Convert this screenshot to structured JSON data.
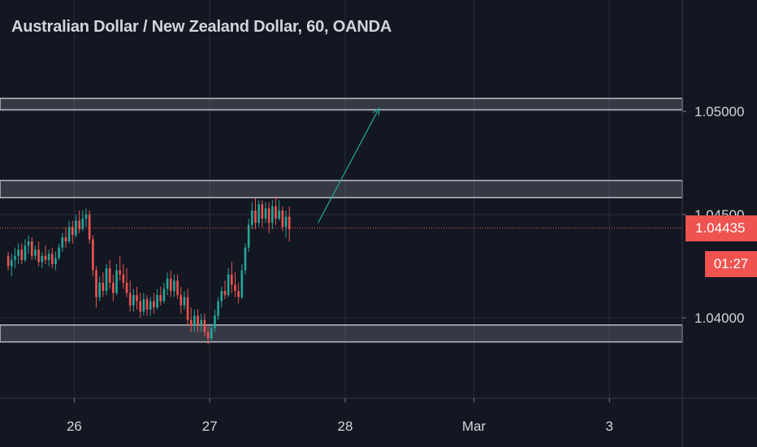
{
  "title": "Australian Dollar / New Zealand Dollar, 60, OANDA",
  "current_price": "1.04435",
  "countdown": "01:27",
  "colors": {
    "background": "#131722",
    "up": "#26a69a",
    "down": "#ef5350",
    "text": "#d1d4dc",
    "grid": "#2a2e39",
    "zone": "#b2b5be"
  },
  "chart_data": {
    "type": "candlestick",
    "symbol": "AUDNZD",
    "interval": "60",
    "source": "OANDA",
    "y_ticks": [
      "1.05000",
      "1.04500",
      "1.04000"
    ],
    "y_tick_values": [
      1.05,
      1.045,
      1.04
    ],
    "x_ticks": [
      "26",
      "27",
      "28",
      "Mar",
      "3"
    ],
    "x_tick_hours": [
      20,
      60,
      100,
      138,
      178
    ],
    "ylim": [
      1.0361,
      1.0554
    ],
    "xlim": [
      -10,
      201
    ],
    "last_price": 1.04435,
    "zones": [
      {
        "low": 1.05008,
        "high": 1.05063
      },
      {
        "low": 1.04582,
        "high": 1.04665
      },
      {
        "low": 1.03883,
        "high": 1.03965
      }
    ],
    "arrow": {
      "from": {
        "hour": 92,
        "price": 1.0446
      },
      "to": {
        "hour": 110,
        "price": 1.05015
      }
    },
    "candles": [
      [
        1.043,
        1.0432,
        1.0423,
        1.0425
      ],
      [
        1.0425,
        1.0431,
        1.042,
        1.0428
      ],
      [
        1.0428,
        1.0434,
        1.0424,
        1.043
      ],
      [
        1.043,
        1.0436,
        1.0426,
        1.0433
      ],
      [
        1.0433,
        1.0436,
        1.0426,
        1.0428
      ],
      [
        1.0428,
        1.0438,
        1.0427,
        1.0435
      ],
      [
        1.0435,
        1.044,
        1.0431,
        1.0437
      ],
      [
        1.0437,
        1.0439,
        1.0428,
        1.043
      ],
      [
        1.043,
        1.0435,
        1.0428,
        1.0433
      ],
      [
        1.0433,
        1.0437,
        1.0425,
        1.0427
      ],
      [
        1.0427,
        1.0432,
        1.0424,
        1.043
      ],
      [
        1.043,
        1.0435,
        1.0426,
        1.0428
      ],
      [
        1.0428,
        1.0433,
        1.0425,
        1.0431
      ],
      [
        1.0431,
        1.0434,
        1.0424,
        1.0426
      ],
      [
        1.0426,
        1.0432,
        1.0423,
        1.0429
      ],
      [
        1.0429,
        1.0436,
        1.0428,
        1.0434
      ],
      [
        1.0434,
        1.0441,
        1.0432,
        1.0439
      ],
      [
        1.0439,
        1.0444,
        1.0434,
        1.0437
      ],
      [
        1.0437,
        1.0447,
        1.0436,
        1.0444
      ],
      [
        1.0444,
        1.0447,
        1.0436,
        1.044
      ],
      [
        1.044,
        1.045,
        1.0439,
        1.0447
      ],
      [
        1.0447,
        1.0452,
        1.0441,
        1.0443
      ],
      [
        1.0443,
        1.0452,
        1.0442,
        1.0448
      ],
      [
        1.0448,
        1.0453,
        1.0444,
        1.045
      ],
      [
        1.045,
        1.0452,
        1.0436,
        1.0438
      ],
      [
        1.0438,
        1.044,
        1.042,
        1.0423
      ],
      [
        1.0423,
        1.0425,
        1.0405,
        1.041
      ],
      [
        1.041,
        1.042,
        1.0408,
        1.0417
      ],
      [
        1.0417,
        1.0422,
        1.041,
        1.0413
      ],
      [
        1.0413,
        1.0426,
        1.0411,
        1.0424
      ],
      [
        1.0424,
        1.0428,
        1.0414,
        1.0417
      ],
      [
        1.0417,
        1.0421,
        1.0408,
        1.0412
      ],
      [
        1.0412,
        1.0426,
        1.0411,
        1.0423
      ],
      [
        1.0423,
        1.043,
        1.0418,
        1.0421
      ],
      [
        1.0421,
        1.0426,
        1.0414,
        1.0417
      ],
      [
        1.0417,
        1.0424,
        1.041,
        1.0412
      ],
      [
        1.0412,
        1.0418,
        1.0403,
        1.0406
      ],
      [
        1.0406,
        1.0414,
        1.0403,
        1.0411
      ],
      [
        1.0411,
        1.0415,
        1.0404,
        1.0408
      ],
      [
        1.0408,
        1.0412,
        1.04,
        1.0403
      ],
      [
        1.0403,
        1.0412,
        1.0401,
        1.0409
      ],
      [
        1.0409,
        1.0411,
        1.0401,
        1.0404
      ],
      [
        1.0404,
        1.041,
        1.0401,
        1.0408
      ],
      [
        1.0408,
        1.0412,
        1.0402,
        1.0405
      ],
      [
        1.0405,
        1.0414,
        1.0404,
        1.0411
      ],
      [
        1.0411,
        1.0415,
        1.0406,
        1.0408
      ],
      [
        1.0408,
        1.0417,
        1.0407,
        1.0414
      ],
      [
        1.0414,
        1.0422,
        1.0411,
        1.0419
      ],
      [
        1.0419,
        1.0423,
        1.041,
        1.0413
      ],
      [
        1.0413,
        1.0421,
        1.041,
        1.0418
      ],
      [
        1.0418,
        1.0421,
        1.0409,
        1.0411
      ],
      [
        1.0411,
        1.0415,
        1.0402,
        1.0406
      ],
      [
        1.0406,
        1.0413,
        1.0404,
        1.041
      ],
      [
        1.041,
        1.0414,
        1.0396,
        1.0399
      ],
      [
        1.0399,
        1.0405,
        1.0393,
        1.0396
      ],
      [
        1.0396,
        1.0404,
        1.0393,
        1.0401
      ],
      [
        1.0401,
        1.0404,
        1.0393,
        1.0396
      ],
      [
        1.0396,
        1.0402,
        1.0393,
        1.0399
      ],
      [
        1.0399,
        1.0402,
        1.0391,
        1.0393
      ],
      [
        1.0393,
        1.0396,
        1.0387,
        1.039
      ],
      [
        1.039,
        1.0397,
        1.0389,
        1.0395
      ],
      [
        1.0395,
        1.0404,
        1.0393,
        1.0401
      ],
      [
        1.0401,
        1.041,
        1.0399,
        1.0408
      ],
      [
        1.0408,
        1.0415,
        1.0405,
        1.0413
      ],
      [
        1.0413,
        1.0418,
        1.0409,
        1.0411
      ],
      [
        1.0411,
        1.0424,
        1.041,
        1.0421
      ],
      [
        1.0421,
        1.0427,
        1.0412,
        1.0416
      ],
      [
        1.0416,
        1.0422,
        1.041,
        1.0413
      ],
      [
        1.0413,
        1.0417,
        1.0407,
        1.041
      ],
      [
        1.041,
        1.0426,
        1.0409,
        1.0423
      ],
      [
        1.0423,
        1.0436,
        1.0421,
        1.0434
      ],
      [
        1.0434,
        1.0448,
        1.0432,
        1.0445
      ],
      [
        1.0445,
        1.0456,
        1.0443,
        1.0452
      ],
      [
        1.0452,
        1.0458,
        1.0443,
        1.0446
      ],
      [
        1.0446,
        1.0457,
        1.0444,
        1.0455
      ],
      [
        1.0455,
        1.0457,
        1.0444,
        1.0448
      ],
      [
        1.0448,
        1.0456,
        1.0446,
        1.0453
      ],
      [
        1.0453,
        1.0456,
        1.0441,
        1.0446
      ],
      [
        1.0446,
        1.0457,
        1.0443,
        1.0454
      ],
      [
        1.0454,
        1.0459,
        1.0445,
        1.0448
      ],
      [
        1.0448,
        1.0457,
        1.0447,
        1.0452
      ],
      [
        1.0452,
        1.0454,
        1.0442,
        1.0444
      ],
      [
        1.0444,
        1.0452,
        1.0439,
        1.0449
      ],
      [
        1.0449,
        1.0454,
        1.0437,
        1.0443
      ]
    ]
  }
}
